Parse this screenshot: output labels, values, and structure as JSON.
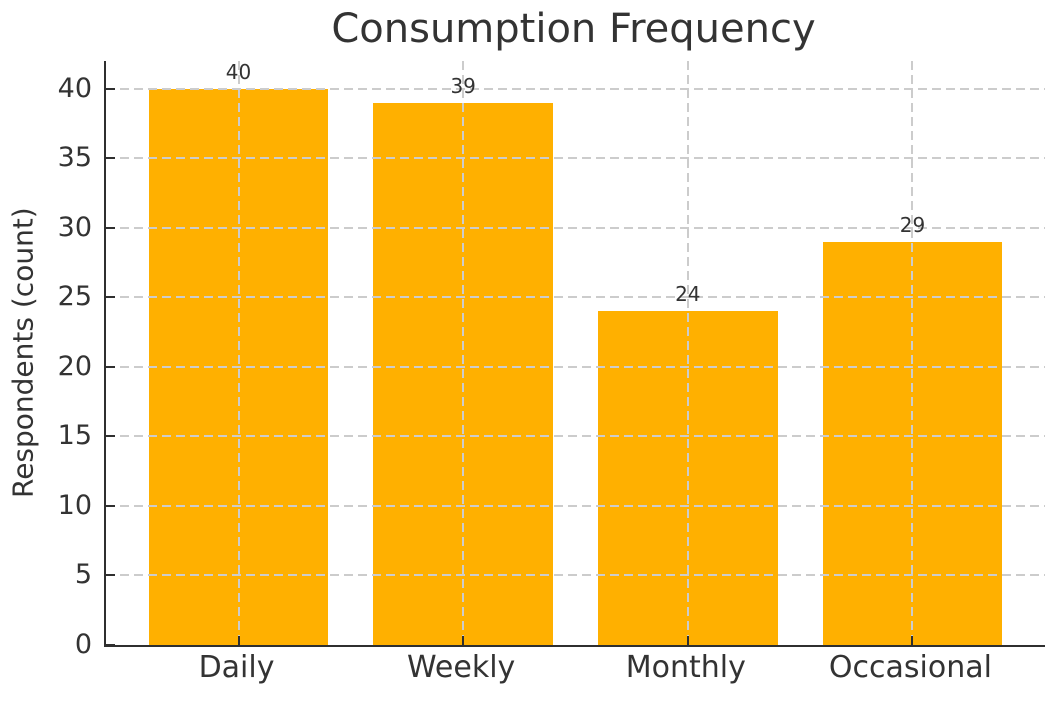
{
  "chart_data": {
    "type": "bar",
    "title": "Consumption Frequency",
    "xlabel": "",
    "ylabel": "Respondents (count)",
    "categories": [
      "Daily",
      "Weekly",
      "Monthly",
      "Occasional"
    ],
    "values": [
      40,
      39,
      24,
      29
    ],
    "bar_labels": [
      "40",
      "39",
      "24",
      "29"
    ],
    "yticks": [
      0,
      5,
      10,
      15,
      20,
      25,
      30,
      35,
      40
    ],
    "ylim": [
      0,
      42
    ],
    "legend": "none",
    "grid": "dashed, horizontal and vertical, drawn over bars",
    "colors": {
      "bar": "#ffb000",
      "grid": "#cccccc",
      "text": "#333333",
      "spine": "#2f2f2f",
      "background": "#ffffff"
    }
  }
}
